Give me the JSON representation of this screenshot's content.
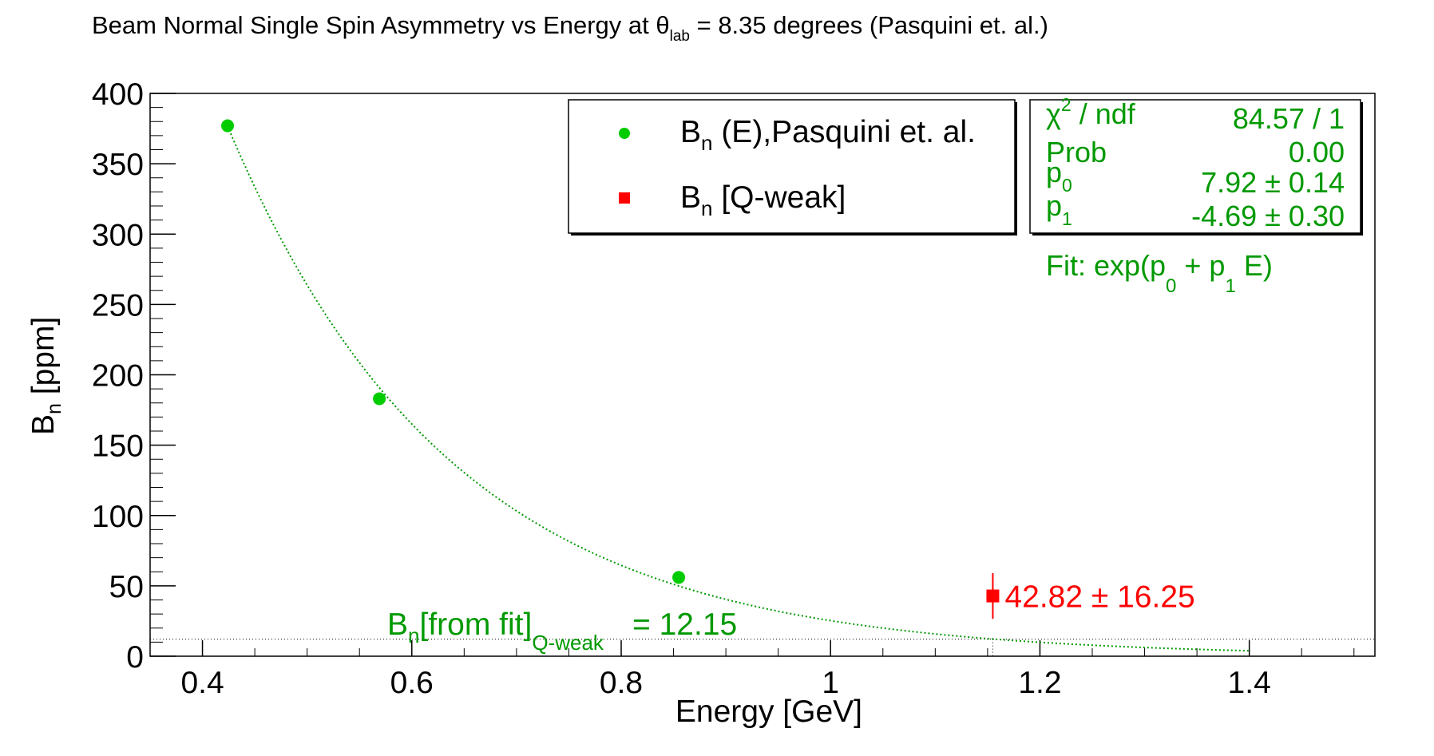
{
  "chart_data": {
    "type": "scatter",
    "title": {
      "prefix": "Beam Normal Single Spin Asymmetry vs Energy at θ",
      "sub": "lab",
      "suffix": " = 8.35 degrees (Pasquini et. al.)"
    },
    "xlabel": "Energy [GeV]",
    "ylabel": {
      "main": "B",
      "sub": "n",
      "suffix": " [ppm]"
    },
    "xlim": [
      0.35,
      1.52
    ],
    "ylim": [
      0,
      400
    ],
    "x_ticks": [
      0.4,
      0.6,
      0.8,
      1,
      1.2,
      1.4
    ],
    "x_tick_labels": [
      "0.4",
      "0.6",
      "0.8",
      "1",
      "1.2",
      "1.4"
    ],
    "y_ticks": [
      0,
      50,
      100,
      150,
      200,
      250,
      300,
      350,
      400
    ],
    "y_tick_labels": [
      "0",
      "50",
      "100",
      "150",
      "200",
      "250",
      "300",
      "350",
      "400"
    ],
    "grid": false,
    "legend_position": "top-center",
    "series": [
      {
        "name": "B_n (E),Pasquini et. al.",
        "legend": {
          "main": "B",
          "sub": "n",
          "suffix": " (E),Pasquini et. al."
        },
        "marker": "circle",
        "color": "#00cc00",
        "points": [
          {
            "x": 0.424,
            "y": 377
          },
          {
            "x": 0.569,
            "y": 183
          },
          {
            "x": 0.855,
            "y": 56
          }
        ]
      },
      {
        "name": "B_n [Q-weak]",
        "legend": {
          "main": "B",
          "sub": "n",
          "suffix": " [Q-weak]"
        },
        "marker": "square",
        "color": "#ff0000",
        "points": [
          {
            "x": 1.155,
            "y": 42.82,
            "yerr": 16.25
          }
        ]
      }
    ],
    "fit": {
      "function": "exp(p0 + p1*E)",
      "p0": 7.92,
      "p1": -4.69,
      "x_range": [
        0.424,
        1.4
      ],
      "color": "#009900",
      "style": "dotted"
    },
    "stats_box": {
      "rows": [
        {
          "label_main": "χ",
          "label_sup": "2",
          "label_suffix": " / ndf",
          "value": "84.57 / 1"
        },
        {
          "label_main": "Prob",
          "value": "0.00"
        },
        {
          "label_main": "p",
          "label_sub": "0",
          "value": "7.92 ± 0.14"
        },
        {
          "label_main": "p",
          "label_sub": "1",
          "value": "-4.69 ± 0.30"
        }
      ],
      "fit_label": {
        "prefix": "Fit: exp(p",
        "sub1": "0",
        "middle": " + p",
        "sub2": "1",
        "suffix": " E)"
      }
    },
    "annotations": {
      "qweak_value": "42.82 ± 16.25",
      "fit_value": {
        "main": "B",
        "sub": "n",
        "mid": "[from fit]",
        "sub2": "Q-weak",
        "value": "= 12.15"
      },
      "fit_value_line_y": 12.15,
      "fit_value_line_x": 1.155
    }
  }
}
